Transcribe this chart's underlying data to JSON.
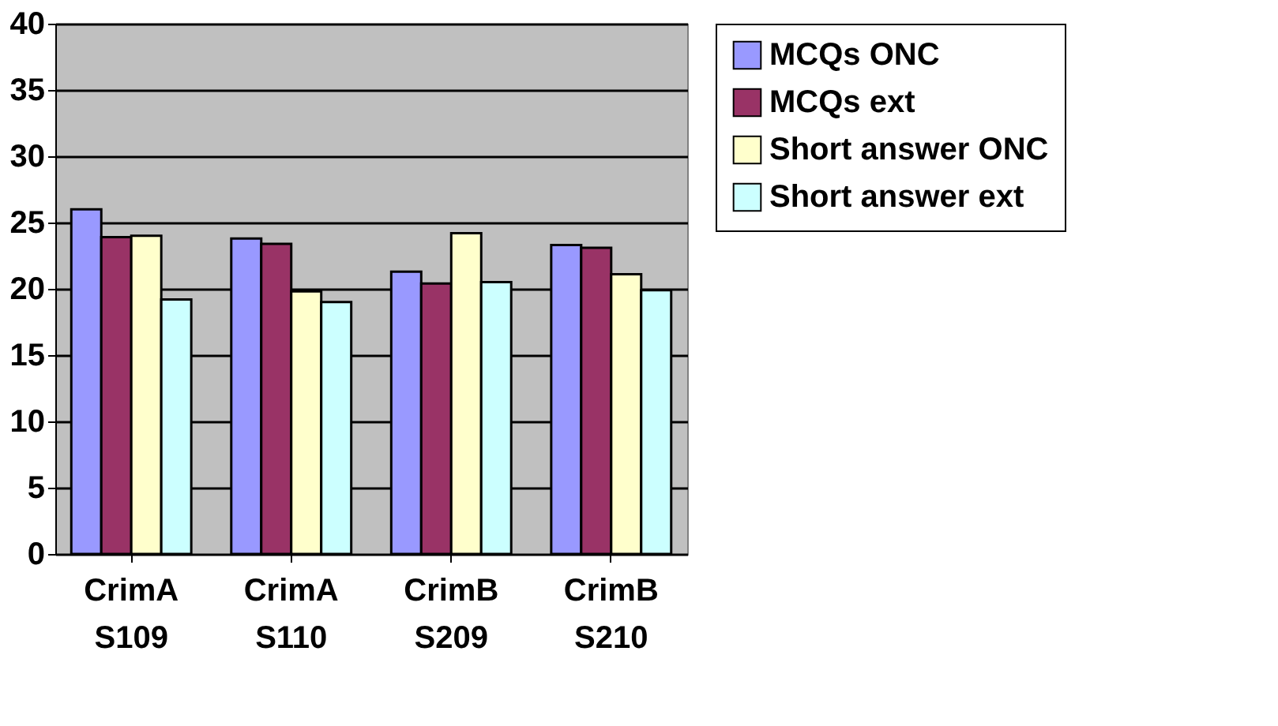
{
  "chart_data": {
    "type": "bar",
    "categories": [
      "CrimA S109",
      "CrimA S110",
      "CrimB S209",
      "CrimB S210"
    ],
    "series": [
      {
        "name": "MCQs ONC",
        "color": "#9999ff",
        "values": [
          26.0,
          23.8,
          21.3,
          23.3
        ]
      },
      {
        "name": "MCQs ext",
        "color": "#993366",
        "values": [
          23.9,
          23.4,
          20.4,
          23.1
        ]
      },
      {
        "name": "Short answer ONC",
        "color": "#ffffcc",
        "values": [
          24.0,
          19.8,
          24.2,
          21.1
        ]
      },
      {
        "name": "Short answer ext",
        "color": "#ccffff",
        "values": [
          19.2,
          19.0,
          20.5,
          19.9
        ]
      }
    ],
    "ylim": [
      0,
      40
    ],
    "yticks": [
      0,
      5,
      10,
      15,
      20,
      25,
      30,
      35,
      40
    ],
    "grid": "y",
    "legend": "right"
  }
}
